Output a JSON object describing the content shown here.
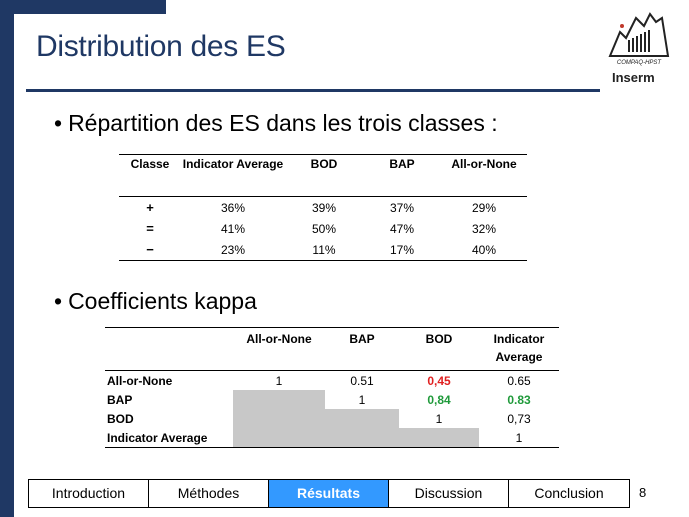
{
  "slide": {
    "title": "Distribution des ES",
    "page_number": "8"
  },
  "logo": {
    "caption": "COMPAQ-HPST",
    "brand": "Inserm"
  },
  "section1": {
    "bullet": "Répartition des ES dans les trois classes :",
    "headers": [
      "Classe",
      "Indicator Average",
      "BOD",
      "BAP",
      "All-or-None"
    ],
    "rows": [
      {
        "classe": "+",
        "values": [
          "36%",
          "39%",
          "37%",
          "29%"
        ]
      },
      {
        "classe": "=",
        "values": [
          "41%",
          "50%",
          "47%",
          "32%"
        ]
      },
      {
        "classe": "−",
        "values": [
          "23%",
          "11%",
          "17%",
          "40%"
        ]
      }
    ]
  },
  "section2": {
    "bullet": "Coefficients kappa",
    "headers": [
      "All-or-None",
      "BAP",
      "BOD",
      "Indicator Average"
    ],
    "rows": [
      {
        "label": "All-or-None",
        "values": [
          "1",
          "0.51",
          "0,45",
          "0.65"
        ]
      },
      {
        "label": "BAP",
        "values": [
          "",
          "1",
          "0,84",
          "0.83"
        ]
      },
      {
        "label": "BOD",
        "values": [
          "",
          "",
          "1",
          "0,73"
        ]
      },
      {
        "label": "Indicator Average",
        "values": [
          "",
          "",
          "",
          "1"
        ]
      }
    ],
    "colors": {
      "highlight_red": "#e02020",
      "highlight_green": "#1f9a3a",
      "shade": "#c8c8c8"
    }
  },
  "nav": {
    "items": [
      "Introduction",
      "Méthodes",
      "Résultats",
      "Discussion",
      "Conclusion"
    ],
    "active": "Résultats",
    "active_color": "#3399ff"
  },
  "theme": {
    "accent": "#1f3864"
  }
}
